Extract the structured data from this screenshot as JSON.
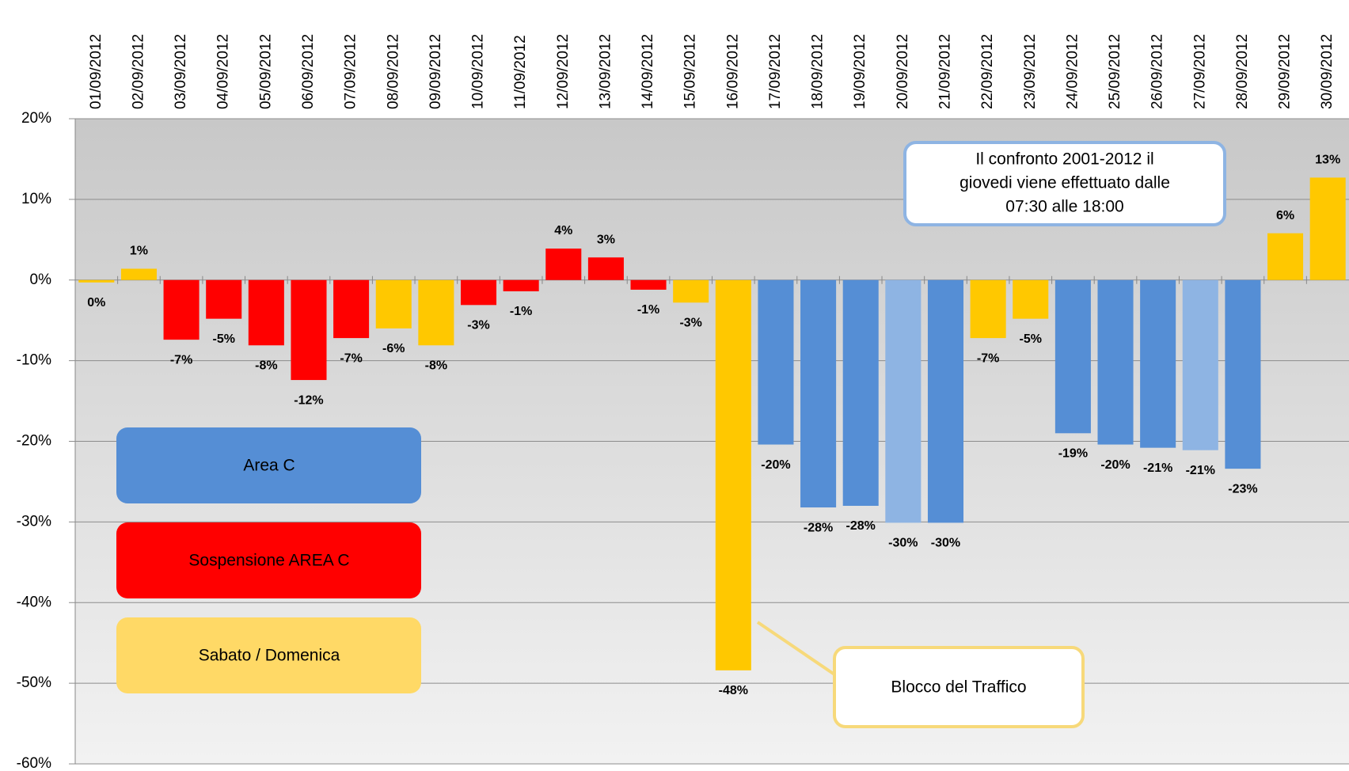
{
  "chart_data": {
    "type": "bar",
    "categories": [
      "01/09/2012",
      "02/09/2012",
      "03/09/2012",
      "04/09/2012",
      "05/09/2012",
      "06/09/2012",
      "07/09/2012",
      "08/09/2012",
      "09/09/2012",
      "10/09/2012",
      "11/09/2012",
      "12/09/2012",
      "13/09/2012",
      "14/09/2012",
      "15/09/2012",
      "16/09/2012",
      "17/09/2012",
      "18/09/2012",
      "19/09/2012",
      "20/09/2012",
      "21/09/2012",
      "22/09/2012",
      "23/09/2012",
      "24/09/2012",
      "25/09/2012",
      "26/09/2012",
      "27/09/2012",
      "28/09/2012",
      "29/09/2012",
      "30/09/2012"
    ],
    "values": [
      -0.3,
      1.4,
      -7.4,
      -4.8,
      -8.1,
      -12.4,
      -7.2,
      -6.0,
      -8.1,
      -3.1,
      -1.4,
      3.9,
      2.8,
      -1.2,
      -2.8,
      -48.4,
      -20.4,
      -28.2,
      -28.0,
      -30.1,
      -30.1,
      -7.2,
      -4.8,
      -19.0,
      -20.4,
      -20.8,
      -21.1,
      -23.4,
      5.8,
      12.7
    ],
    "value_labels": [
      "0%",
      "1%",
      "-7%",
      "-5%",
      "-8%",
      "-12%",
      "-7%",
      "-6%",
      "-8%",
      "-3%",
      "-1%",
      "4%",
      "3%",
      "-1%",
      "-3%",
      "-48%",
      "-20%",
      "-28%",
      "-28%",
      "-30%",
      "-30%",
      "-7%",
      "-5%",
      "-19%",
      "-20%",
      "-21%",
      "-21%",
      "-23%",
      "6%",
      "13%"
    ],
    "colors": [
      "#ffc800",
      "#ffc800",
      "#ff0000",
      "#ff0000",
      "#ff0000",
      "#ff0000",
      "#ff0000",
      "#ffc800",
      "#ffc800",
      "#ff0000",
      "#ff0000",
      "#ff0000",
      "#ff0000",
      "#ff0000",
      "#ffc800",
      "#ffc800",
      "#558ed5",
      "#558ed5",
      "#558ed5",
      "#8eb4e3",
      "#558ed5",
      "#ffc800",
      "#ffc800",
      "#558ed5",
      "#558ed5",
      "#558ed5",
      "#8eb4e3",
      "#558ed5",
      "#ffc800",
      "#ffc800"
    ],
    "legend": [
      {
        "name": "Area C",
        "color": "#558ed5"
      },
      {
        "name": "Sospensione  AREA C",
        "color": "#ff0000"
      },
      {
        "name": "Sabato / Domenica",
        "color": "#ffd966"
      }
    ],
    "annotations": [
      [
        "Il confronto 2001-2012 il",
        "giovedi  viene effettuato dalle",
        "07:30 alle 18:00"
      ],
      [
        "Blocco del Traffico"
      ]
    ],
    "ylim": [
      -60,
      20
    ],
    "yticks": [
      {
        "value": 20,
        "label": "20%"
      },
      {
        "value": 10,
        "label": "10%"
      },
      {
        "value": 0,
        "label": "0%"
      },
      {
        "value": -10,
        "label": "-10%"
      },
      {
        "value": -20,
        "label": "-20%"
      },
      {
        "value": -30,
        "label": "-30%"
      },
      {
        "value": -40,
        "label": "-40%"
      },
      {
        "value": -50,
        "label": "-50%"
      },
      {
        "value": -60,
        "label": "-60%"
      }
    ],
    "grid": true
  }
}
